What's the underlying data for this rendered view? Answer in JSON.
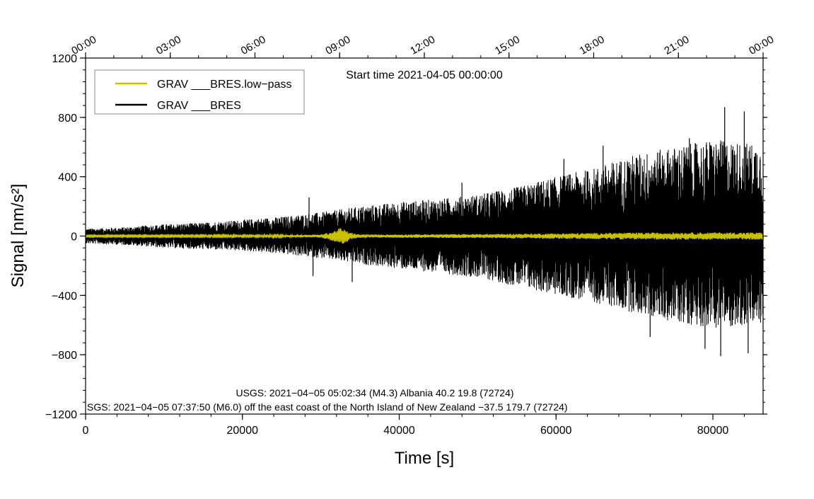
{
  "chart_data": {
    "type": "line",
    "title": "Start time 2021-04-05 00:00:00",
    "xlabel": "Time [s]",
    "ylabel": "Signal [nm/s²]",
    "xlim": [
      0,
      86400
    ],
    "ylim": [
      -1200,
      1200
    ],
    "x_ticks": [
      0,
      20000,
      40000,
      60000,
      80000
    ],
    "x_tick_labels": [
      "0",
      "20000",
      "40000",
      "60000",
      "80000"
    ],
    "y_ticks": [
      1200,
      800,
      400,
      0,
      -400,
      -800,
      -1200
    ],
    "y_tick_labels": [
      "1200",
      "800",
      "400",
      "0",
      "−400",
      "−800",
      "−1200"
    ],
    "top_axis_labels": [
      "00:00",
      "03:00",
      "06:00",
      "09:00",
      "12:00",
      "15:00",
      "18:00",
      "21:00",
      "00:00"
    ],
    "legend_placement": "top-left",
    "grid": false,
    "colors": {
      "raw": "#000000",
      "lowpass": "#c8c000",
      "frame": "#000000",
      "legend_border": "#888888"
    },
    "series": [
      {
        "name": "GRAV ___BRES.low−pass",
        "color": "#c8c000",
        "x": [
          0,
          8000,
          16000,
          24000,
          30000,
          31500,
          32500,
          33500,
          34500,
          36000,
          44000,
          52000,
          60000,
          68000,
          76000,
          86400
        ],
        "y_upper": [
          4,
          4,
          5,
          6,
          10,
          30,
          55,
          30,
          12,
          10,
          12,
          14,
          18,
          22,
          24,
          24
        ],
        "y_lower": [
          -4,
          -4,
          -5,
          -6,
          -10,
          -35,
          -60,
          -35,
          -14,
          -10,
          -12,
          -14,
          -18,
          -22,
          -24,
          -24
        ]
      },
      {
        "name": "GRAV ___BRES",
        "color": "#000000",
        "x": [
          0,
          5000,
          10000,
          15000,
          20000,
          25000,
          30000,
          35000,
          40000,
          45000,
          50000,
          55000,
          60000,
          65000,
          70000,
          75000,
          80000,
          86400
        ],
        "y_upper": [
          50,
          60,
          80,
          90,
          110,
          130,
          160,
          200,
          230,
          250,
          280,
          330,
          400,
          460,
          550,
          600,
          650,
          620
        ],
        "y_lower": [
          -50,
          -60,
          -80,
          -90,
          -100,
          -120,
          -150,
          -190,
          -220,
          -250,
          -280,
          -340,
          -400,
          -450,
          -520,
          -580,
          -620,
          -600
        ],
        "peaks": [
          {
            "x": 28500,
            "y": 260
          },
          {
            "x": 29000,
            "y": -270
          },
          {
            "x": 34000,
            "y": -310
          },
          {
            "x": 48000,
            "y": 360
          },
          {
            "x": 61000,
            "y": 520
          },
          {
            "x": 66000,
            "y": 610
          },
          {
            "x": 72000,
            "y": -680
          },
          {
            "x": 77000,
            "y": 660
          },
          {
            "x": 79000,
            "y": -760
          },
          {
            "x": 81500,
            "y": 870
          },
          {
            "x": 81000,
            "y": -810
          },
          {
            "x": 84000,
            "y": 840
          },
          {
            "x": 84500,
            "y": -790
          }
        ]
      }
    ],
    "annotations": [
      "USGS: 2021−04−05 05:02:34 (M4.3) Albania 40.2 19.8 (72724)",
      "SGS: 2021−04−05 07:37:50 (M6.0) off the east coast of the North Island of New Zealand −37.5 179.7 (72724)"
    ]
  }
}
